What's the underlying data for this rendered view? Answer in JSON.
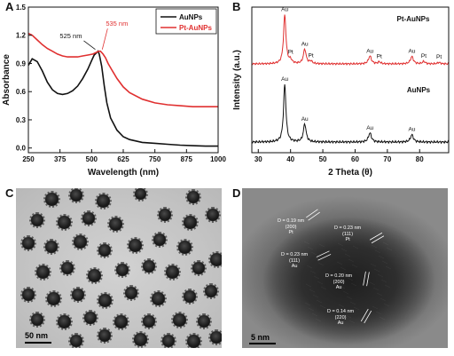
{
  "panel_letters": [
    "A",
    "B",
    "C",
    "D"
  ],
  "chart_data": [
    {
      "type": "line",
      "xlabel": "Wavelength (nm)",
      "ylabel": "Absorbance",
      "xlim": [
        250,
        1000
      ],
      "ylim": [
        -0.05,
        1.5
      ],
      "xticks": [
        250,
        500,
        750
      ],
      "xtick_labels": [
        "250",
        "500",
        "750"
      ],
      "xticks_extra": [
        375,
        625,
        875,
        1000
      ],
      "yticks": [
        0.0,
        0.3,
        0.6,
        0.9,
        1.2,
        1.5
      ],
      "ytick_labels": [
        "0.0",
        "0.3",
        "0.6",
        "0.9",
        "1.2",
        "1.5"
      ],
      "xtick_all": [
        250,
        375,
        500,
        625,
        750,
        875,
        1000
      ],
      "xtick_all_labels": [
        "250",
        "375",
        "500",
        "625",
        "750",
        "875",
        "1000"
      ],
      "legend_position": "top-right",
      "series": [
        {
          "name": "AuNPs",
          "color": "#111111",
          "x": [
            250,
            265,
            285,
            305,
            325,
            345,
            365,
            385,
            405,
            425,
            445,
            465,
            485,
            500,
            510,
            518,
            525,
            530,
            540,
            550,
            560,
            575,
            600,
            625,
            650,
            700,
            750,
            800,
            850,
            900,
            950,
            1000
          ],
          "y": [
            0.88,
            0.95,
            0.92,
            0.82,
            0.7,
            0.62,
            0.58,
            0.57,
            0.58,
            0.61,
            0.66,
            0.74,
            0.84,
            0.93,
            0.99,
            1.01,
            1.03,
            1.0,
            0.87,
            0.66,
            0.48,
            0.32,
            0.19,
            0.12,
            0.09,
            0.06,
            0.05,
            0.04,
            0.03,
            0.025,
            0.02,
            0.02
          ]
        },
        {
          "name": "Pt-AuNPs",
          "color": "#e03030",
          "x": [
            250,
            265,
            285,
            305,
            325,
            345,
            365,
            385,
            405,
            425,
            445,
            465,
            485,
            505,
            520,
            528,
            535,
            545,
            555,
            565,
            580,
            600,
            625,
            650,
            700,
            750,
            800,
            850,
            900,
            950,
            1000
          ],
          "y": [
            1.22,
            1.2,
            1.15,
            1.1,
            1.06,
            1.03,
            1.0,
            0.98,
            0.97,
            0.97,
            0.97,
            0.98,
            0.99,
            1.0,
            1.02,
            1.03,
            1.03,
            1.0,
            0.96,
            0.9,
            0.83,
            0.74,
            0.65,
            0.59,
            0.52,
            0.48,
            0.46,
            0.45,
            0.44,
            0.44,
            0.44
          ]
        }
      ],
      "annotations": [
        {
          "text": "525 nm",
          "x": 525,
          "y": 1.03,
          "color": "#111111"
        },
        {
          "text": "535 nm",
          "x": 535,
          "y": 1.03,
          "color": "#e03030"
        }
      ]
    },
    {
      "type": "line",
      "xlabel": "2 Theta (θ)",
      "ylabel": "Intensity (a.u.)",
      "xlim": [
        28,
        89
      ],
      "xticks": [
        30,
        40,
        50,
        60,
        70,
        80
      ],
      "xtick_labels": [
        "30",
        "40",
        "50",
        "60",
        "70",
        "80"
      ],
      "series": [
        {
          "name": "Pt-AuNPs",
          "color": "#e03030",
          "offset": 1.0,
          "peaks": [
            {
              "x": 38.2,
              "h": 1.0,
              "w": 0.45
            },
            {
              "x": 40.0,
              "h": 0.07,
              "w": 0.5
            },
            {
              "x": 44.4,
              "h": 0.3,
              "w": 0.5
            },
            {
              "x": 46.3,
              "h": 0.05,
              "w": 0.5
            },
            {
              "x": 64.6,
              "h": 0.16,
              "w": 0.55
            },
            {
              "x": 67.5,
              "h": 0.04,
              "w": 0.5
            },
            {
              "x": 77.6,
              "h": 0.15,
              "w": 0.55
            },
            {
              "x": 81.3,
              "h": 0.05,
              "w": 0.5
            },
            {
              "x": 86.0,
              "h": 0.03,
              "w": 0.5
            }
          ]
        },
        {
          "name": "AuNPs",
          "color": "#111111",
          "offset": 0.0,
          "peaks": [
            {
              "x": 38.2,
              "h": 0.95,
              "w": 0.45
            },
            {
              "x": 44.4,
              "h": 0.3,
              "w": 0.5
            },
            {
              "x": 64.6,
              "h": 0.15,
              "w": 0.55
            },
            {
              "x": 77.6,
              "h": 0.12,
              "w": 0.55
            }
          ]
        }
      ],
      "series_labels": [
        "Pt-AuNPs",
        "AuNPs"
      ],
      "peak_labels": [
        {
          "text": "Au",
          "x": 38.2,
          "series": "Pt-AuNPs"
        },
        {
          "text": "Pt",
          "x": 40.0,
          "series": "Pt-AuNPs"
        },
        {
          "text": "Au",
          "x": 44.4,
          "series": "Pt-AuNPs"
        },
        {
          "text": "Pt",
          "x": 46.3,
          "series": "Pt-AuNPs"
        },
        {
          "text": "Au",
          "x": 64.6,
          "series": "Pt-AuNPs"
        },
        {
          "text": "Pt",
          "x": 67.5,
          "series": "Pt-AuNPs"
        },
        {
          "text": "Au",
          "x": 77.6,
          "series": "Pt-AuNPs"
        },
        {
          "text": "Pt",
          "x": 81.3,
          "series": "Pt-AuNPs"
        },
        {
          "text": "Pt",
          "x": 86.0,
          "series": "Pt-AuNPs"
        },
        {
          "text": "Au",
          "x": 38.2,
          "series": "AuNPs"
        },
        {
          "text": "Au",
          "x": 44.4,
          "series": "AuNPs"
        },
        {
          "text": "Au",
          "x": 64.6,
          "series": "AuNPs"
        },
        {
          "text": "Au",
          "x": 77.6,
          "series": "AuNPs"
        }
      ]
    }
  ],
  "panel_c": {
    "scale_label": "50 nm"
  },
  "panel_d": {
    "scale_label": "5 nm",
    "lattice_labels": [
      "D = 0.19 nm\n(200)\nPt",
      "D = 0.23 nm\n(111)\nPt",
      "D = 0.23 nm\n(111)\nAu",
      "D = 0.20 nm\n(200)\nAu",
      "D = 0.14 nm\n(220)\nAu"
    ]
  }
}
